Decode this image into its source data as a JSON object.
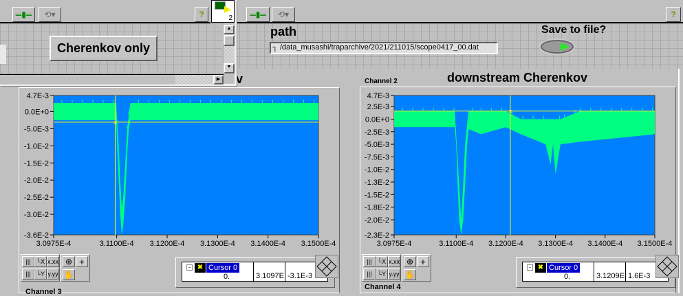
{
  "toolbar": {
    "align_icon": "align-distribute-icon",
    "reorder_icon": "reorder-icon",
    "help_label": "?"
  },
  "front_window": {
    "icon_number": "2",
    "button_label": "Cherenkov only"
  },
  "path": {
    "label": "path",
    "value": "/data_musashi/traparchive/2021/211015/scope0417_00.dat"
  },
  "save": {
    "label": "Save to file?",
    "state": "off"
  },
  "colors": {
    "plot_bg": "#0080ff",
    "trace": "#00ff80",
    "cursor": "#ffff00",
    "panel": "#c0c0c0"
  },
  "charts": [
    {
      "title_partial": "v",
      "channel_label_below": "Channel 3",
      "cursor": {
        "name": "Cursor 0",
        "index": "0.",
        "x": "3.1097E",
        "y": "-3.1E-3"
      }
    },
    {
      "title": "downstream Cherenkov",
      "channel_label": "Channel 2",
      "channel_label_below": "Channel 4",
      "cursor": {
        "name": "Cursor 0",
        "index": "0.",
        "x": "3.1209E",
        "y": "1.6E-3"
      }
    }
  ],
  "chart_data": [
    {
      "type": "line",
      "xlim": [
        0.00030975,
        0.000315
      ],
      "ylim": [
        -0.036,
        0.0047
      ],
      "xticks": [
        "3.0975E-4",
        "3.1100E-4",
        "3.1200E-4",
        "3.1300E-4",
        "3.1400E-4",
        "3.1500E-4"
      ],
      "xtick_values": [
        0.00030975,
        0.000311,
        0.000312,
        0.000313,
        0.000314,
        0.000315
      ],
      "yticks": [
        "4.7E-3",
        "0.0E+0",
        "-5.0E-3",
        "-1.0E-2",
        "-1.5E-2",
        "-2.0E-2",
        "-2.5E-2",
        "-3.0E-2",
        "-3.6E-2"
      ],
      "ytick_values": [
        0.0047,
        0,
        -0.005,
        -0.01,
        -0.015,
        -0.02,
        -0.025,
        -0.03,
        -0.036
      ],
      "cursor": {
        "x": 0.00031097,
        "y": -0.0031
      },
      "envelope": {
        "x": [
          0.00030975,
          0.00031099,
          0.00031101,
          0.00031104,
          0.00031107,
          0.0003111,
          0.00031113,
          0.00031117,
          0.00031121,
          0.00031124,
          0.00031127,
          0.000315
        ],
        "ymax": [
          0.0025,
          0.0025,
          -0.003,
          -0.01,
          -0.02,
          -0.028,
          -0.025,
          -0.015,
          -0.005,
          -0.001,
          0.0025,
          0.0025
        ],
        "ymin": [
          -0.0025,
          -0.0025,
          -0.01,
          -0.02,
          -0.03,
          -0.036,
          -0.033,
          -0.025,
          -0.012,
          -0.005,
          -0.0025,
          -0.0025
        ]
      }
    },
    {
      "type": "line",
      "xlim": [
        0.00030975,
        0.000315
      ],
      "ylim": [
        -0.023,
        0.0047
      ],
      "title": "downstream Cherenkov",
      "xticks": [
        "3.0975E-4",
        "3.1100E-4",
        "3.1200E-4",
        "3.1300E-4",
        "3.1400E-4",
        "3.1500E-4"
      ],
      "xtick_values": [
        0.00030975,
        0.000311,
        0.000312,
        0.000313,
        0.000314,
        0.000315
      ],
      "yticks": [
        "4.7E-3",
        "2.5E-3",
        "0.0E+0",
        "-2.5E-3",
        "-5.0E-3",
        "-7.5E-3",
        "-1.0E-2",
        "-1.3E-2",
        "-1.5E-2",
        "-1.8E-2",
        "-2.0E-2",
        "-2.3E-2"
      ],
      "ytick_values": [
        0.0047,
        0.0025,
        0,
        -0.0025,
        -0.005,
        -0.0075,
        -0.01,
        -0.0125,
        -0.015,
        -0.0175,
        -0.02,
        -0.023
      ],
      "cursor": {
        "x": 0.00031209,
        "y": 0.0016
      },
      "envelope": {
        "x": [
          0.00030975,
          0.00031097,
          0.000311,
          0.00031103,
          0.00031106,
          0.0003111,
          0.00031114,
          0.00031118,
          0.00031122,
          0.00031125,
          0.0003115,
          0.000312,
          0.0003123,
          0.0003128,
          0.0003129,
          0.00031295,
          0.000313,
          0.0003131,
          0.0003135,
          0.000315
        ],
        "ymax": [
          0.0016,
          0.0016,
          -0.003,
          -0.008,
          -0.013,
          -0.02,
          -0.013,
          -0.005,
          -0.001,
          0.0016,
          0.0016,
          0.0016,
          0,
          0,
          0,
          0,
          0,
          0,
          0.0016,
          0.0016
        ],
        "ymin": [
          -0.0016,
          -0.0016,
          -0.005,
          -0.013,
          -0.02,
          -0.023,
          -0.02,
          -0.013,
          -0.005,
          -0.002,
          -0.003,
          -0.0016,
          -0.003,
          -0.005,
          -0.009,
          -0.005,
          -0.011,
          -0.005,
          -0.0045,
          -0.003
        ]
      }
    }
  ]
}
